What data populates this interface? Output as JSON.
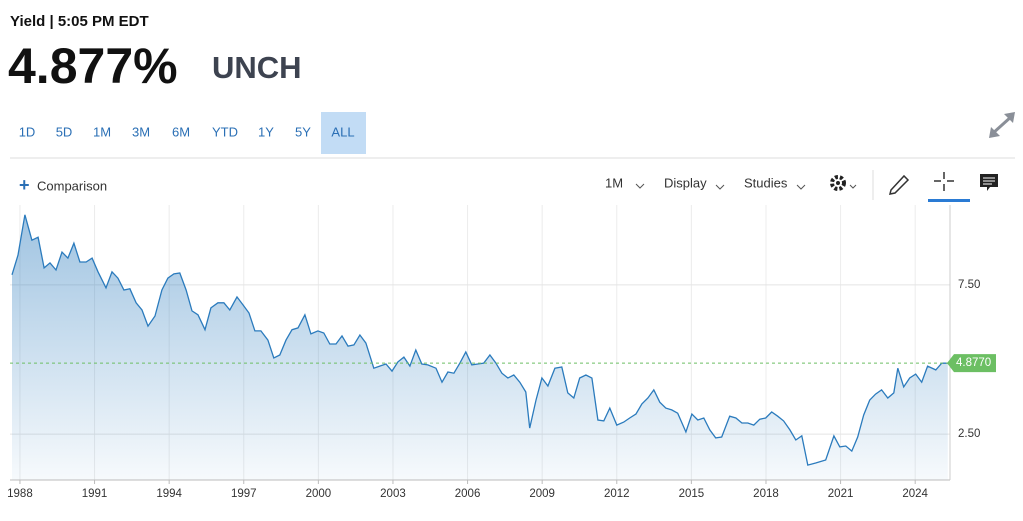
{
  "header": {
    "label": "Yield | 5:05 PM EDT",
    "price": "4.877%",
    "change": "UNCH"
  },
  "ranges": [
    "1D",
    "5D",
    "1M",
    "3M",
    "6M",
    "YTD",
    "1Y",
    "5Y",
    "ALL"
  ],
  "active_range": "ALL",
  "toolbar": {
    "comparison": "Comparison",
    "interval": "1M",
    "display": "Display",
    "studies": "Studies"
  },
  "chart_data": {
    "type": "area",
    "color": "#2b7bbd",
    "x": [
      1987.68,
      1987.92,
      1988.2,
      1988.48,
      1988.73,
      1988.97,
      1989.21,
      1989.45,
      1989.69,
      1989.93,
      1990.17,
      1990.41,
      1990.66,
      1990.9,
      1991.14,
      1991.46,
      1991.7,
      1991.94,
      1992.18,
      1992.42,
      1992.67,
      1992.91,
      1993.15,
      1993.43,
      1993.71,
      1993.95,
      1994.19,
      1994.43,
      1994.68,
      1994.92,
      1995.16,
      1995.44,
      1995.68,
      1995.96,
      1996.2,
      1996.44,
      1996.73,
      1996.97,
      1997.21,
      1997.45,
      1997.69,
      1997.97,
      1998.21,
      1998.45,
      1998.7,
      1998.94,
      1999.18,
      1999.46,
      1999.7,
      1999.98,
      2000.22,
      2000.46,
      2000.71,
      2000.95,
      2001.19,
      2001.43,
      2001.67,
      2001.91,
      2002.23,
      2002.47,
      2002.72,
      2002.96,
      2003.2,
      2003.44,
      2003.68,
      2003.92,
      2004.16,
      2004.4,
      2004.73,
      2004.97,
      2005.21,
      2005.45,
      2005.69,
      2005.93,
      2006.17,
      2006.41,
      2006.65,
      2006.9,
      2007.14,
      2007.38,
      2007.62,
      2007.86,
      2008.1,
      2008.34,
      2008.5,
      2008.75,
      2008.99,
      2009.23,
      2009.51,
      2009.79,
      2010.03,
      2010.27,
      2010.51,
      2010.76,
      2011.0,
      2011.24,
      2011.48,
      2011.72,
      2012.0,
      2012.28,
      2012.52,
      2012.77,
      2013.01,
      2013.25,
      2013.49,
      2013.73,
      2013.97,
      2014.21,
      2014.45,
      2014.78,
      2015.02,
      2015.26,
      2015.5,
      2015.74,
      2015.98,
      2016.22,
      2016.54,
      2016.79,
      2017.03,
      2017.27,
      2017.51,
      2017.75,
      2017.99,
      2018.23,
      2018.47,
      2018.71,
      2018.96,
      2019.2,
      2019.44,
      2019.68,
      2020.0,
      2020.4,
      2020.73,
      2020.97,
      2021.21,
      2021.45,
      2021.69,
      2021.93,
      2022.17,
      2022.41,
      2022.65,
      2022.9,
      2023.14,
      2023.3,
      2023.54,
      2023.78,
      2024.02,
      2024.26,
      2024.5,
      2024.83,
      2025.07,
      2025.31
    ],
    "values": [
      7.84,
      8.5,
      9.85,
      9.0,
      9.1,
      8.07,
      8.24,
      8.0,
      8.6,
      8.4,
      8.9,
      8.27,
      8.27,
      8.4,
      7.94,
      7.4,
      7.94,
      7.73,
      7.33,
      7.37,
      6.9,
      6.66,
      6.12,
      6.46,
      7.33,
      7.73,
      7.87,
      7.9,
      7.33,
      6.63,
      6.5,
      6.0,
      6.73,
      6.9,
      6.9,
      6.66,
      7.1,
      6.83,
      6.56,
      5.96,
      5.96,
      5.65,
      5.05,
      5.15,
      5.65,
      6.0,
      6.06,
      6.5,
      5.86,
      5.96,
      5.89,
      5.52,
      5.52,
      5.79,
      5.45,
      5.49,
      5.82,
      5.55,
      4.71,
      4.78,
      4.85,
      4.61,
      4.92,
      5.08,
      4.78,
      5.32,
      4.85,
      4.82,
      4.71,
      4.24,
      4.58,
      4.54,
      4.88,
      5.25,
      4.82,
      4.85,
      4.88,
      5.15,
      4.88,
      4.54,
      4.38,
      4.48,
      4.24,
      3.91,
      2.7,
      3.64,
      4.38,
      4.11,
      4.71,
      4.75,
      3.88,
      3.71,
      4.38,
      4.48,
      4.38,
      2.97,
      2.94,
      3.37,
      2.8,
      2.9,
      3.04,
      3.17,
      3.51,
      3.71,
      3.98,
      3.57,
      3.37,
      3.31,
      3.2,
      2.57,
      3.17,
      2.97,
      3.04,
      2.64,
      2.37,
      2.4,
      3.1,
      3.04,
      2.87,
      2.87,
      2.8,
      3.0,
      3.04,
      3.24,
      3.1,
      2.94,
      2.64,
      2.3,
      2.44,
      1.46,
      1.53,
      1.63,
      2.44,
      2.07,
      2.1,
      1.93,
      2.4,
      3.14,
      3.64,
      3.84,
      3.98,
      3.71,
      3.88,
      4.71,
      4.08,
      4.38,
      4.51,
      4.24,
      4.78,
      4.65,
      4.88,
      4.877
    ],
    "xlim": [
      1987.6,
      2025.4
    ],
    "xticks": [
      1988,
      1991,
      1994,
      1997,
      2000,
      2003,
      2006,
      2009,
      2012,
      2015,
      2018,
      2021,
      2024
    ],
    "ylim": [
      0.96,
      10.18
    ],
    "yticks": [
      {
        "value": 2.5,
        "label": "2.50"
      },
      {
        "value": 7.5,
        "label": "7.50"
      }
    ],
    "grid": true,
    "last_value": 4.877,
    "last_label": "4.8770",
    "last_color": "#6cbf63"
  }
}
